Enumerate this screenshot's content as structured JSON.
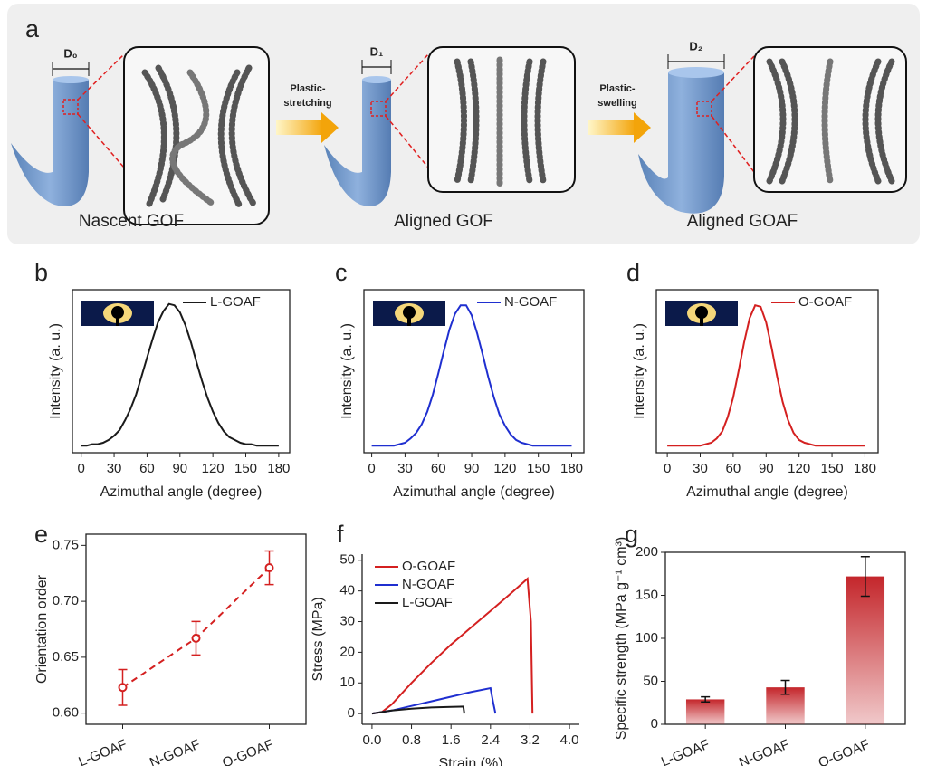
{
  "panel_a": {
    "label": "a",
    "fibers": [
      {
        "label": "D₀"
      },
      {
        "label": "D₁"
      },
      {
        "label": "D₂"
      }
    ],
    "arrows": [
      {
        "lines": [
          "Plastic-",
          "stretching"
        ]
      },
      {
        "lines": [
          "Plastic-",
          "swelling"
        ]
      }
    ],
    "captions": [
      "Nascent GOF",
      "Aligned GOF",
      "Aligned GOAF"
    ]
  },
  "chart_data": [
    {
      "type": "line",
      "label": "b",
      "xlabel": "Azimuthal angle (degree)",
      "ylabel": "Intensity (a. u.)",
      "x": [
        0,
        5,
        10,
        15,
        20,
        25,
        30,
        35,
        40,
        45,
        50,
        55,
        60,
        65,
        70,
        75,
        80,
        85,
        90,
        95,
        100,
        105,
        110,
        115,
        120,
        125,
        130,
        135,
        140,
        145,
        150,
        155,
        160,
        165,
        170,
        175,
        180
      ],
      "series": [
        {
          "name": "L-GOAF",
          "color": "#1a1a1a",
          "values": [
            0,
            0,
            0.01,
            0.01,
            0.02,
            0.04,
            0.07,
            0.11,
            0.18,
            0.26,
            0.36,
            0.49,
            0.62,
            0.75,
            0.87,
            0.95,
            1.0,
            0.99,
            0.94,
            0.85,
            0.73,
            0.59,
            0.46,
            0.34,
            0.24,
            0.16,
            0.1,
            0.06,
            0.04,
            0.02,
            0.01,
            0.01,
            0,
            0,
            0,
            0,
            0
          ]
        }
      ],
      "xlim": [
        -8,
        190
      ],
      "ylim": [
        -0.05,
        1.1
      ],
      "xticks": [
        0,
        30,
        60,
        90,
        120,
        150,
        180
      ],
      "legend": "upper right"
    },
    {
      "type": "line",
      "label": "c",
      "xlabel": "Azimuthal angle (degree)",
      "ylabel": "Intensity (a. u.)",
      "x": [
        0,
        5,
        10,
        15,
        20,
        25,
        30,
        35,
        40,
        45,
        50,
        55,
        60,
        65,
        70,
        75,
        80,
        85,
        90,
        95,
        100,
        105,
        110,
        115,
        120,
        125,
        130,
        135,
        140,
        145,
        150,
        155,
        160,
        165,
        170,
        175,
        180
      ],
      "series": [
        {
          "name": "N-GOAF",
          "color": "#1f2fd0",
          "values": [
            0,
            0,
            0,
            0,
            0,
            0.01,
            0.02,
            0.05,
            0.09,
            0.15,
            0.24,
            0.36,
            0.51,
            0.67,
            0.82,
            0.93,
            0.99,
            0.99,
            0.92,
            0.79,
            0.64,
            0.48,
            0.34,
            0.22,
            0.14,
            0.08,
            0.04,
            0.02,
            0.01,
            0,
            0,
            0,
            0,
            0,
            0,
            0,
            0
          ]
        }
      ],
      "xlim": [
        -7,
        191
      ],
      "ylim": [
        -0.05,
        1.1
      ],
      "xticks": [
        0,
        30,
        60,
        90,
        120,
        150,
        180
      ],
      "legend": "upper right"
    },
    {
      "type": "line",
      "label": "d",
      "xlabel": "Azimuthal angle (degree)",
      "ylabel": "Intensity (a. u.)",
      "x": [
        0,
        5,
        10,
        15,
        20,
        25,
        30,
        35,
        40,
        45,
        50,
        55,
        60,
        65,
        70,
        75,
        80,
        85,
        90,
        95,
        100,
        105,
        110,
        115,
        120,
        125,
        130,
        135,
        140,
        145,
        150,
        155,
        160,
        165,
        170,
        175,
        180
      ],
      "series": [
        {
          "name": "O-GOAF",
          "color": "#d42020",
          "values": [
            0,
            0,
            0,
            0,
            0,
            0,
            0,
            0.01,
            0.02,
            0.05,
            0.1,
            0.2,
            0.34,
            0.53,
            0.73,
            0.9,
            0.99,
            0.98,
            0.87,
            0.69,
            0.49,
            0.31,
            0.18,
            0.09,
            0.04,
            0.02,
            0.01,
            0,
            0,
            0,
            0,
            0,
            0,
            0,
            0,
            0,
            0
          ]
        }
      ],
      "xlim": [
        -10,
        192
      ],
      "ylim": [
        -0.05,
        1.1
      ],
      "xticks": [
        0,
        30,
        60,
        90,
        120,
        150,
        180
      ],
      "legend": "upper right"
    },
    {
      "type": "line",
      "label": "e",
      "ylabel": "Orientation order",
      "categories": [
        "L-GOAF",
        "N-GOAF",
        "O-GOAF"
      ],
      "series": [
        {
          "color": "#d42020",
          "values": [
            0.623,
            0.667,
            0.73
          ],
          "errors": [
            0.016,
            0.015,
            0.015
          ]
        }
      ],
      "ylim": [
        0.59,
        0.76
      ],
      "yticks": [
        {
          "value": 0.6,
          "label": "0.60"
        },
        0.65,
        {
          "value": 0.7,
          "label": "0.70"
        },
        0.75
      ],
      "line_style": "dashed",
      "markers": true
    },
    {
      "type": "line",
      "label": "f",
      "xlabel": "Strain (%)",
      "ylabel": "Stress (MPa)",
      "series": [
        {
          "name": "O-GOAF",
          "color": "#d42020",
          "x": [
            0,
            0.2,
            0.4,
            0.8,
            1.2,
            1.6,
            2.0,
            2.4,
            2.8,
            3.15,
            3.22,
            3.25
          ],
          "values": [
            0,
            0.5,
            3,
            10,
            16.5,
            22.5,
            28,
            33.5,
            39,
            44,
            30,
            0
          ]
        },
        {
          "name": "N-GOAF",
          "color": "#1f2fd0",
          "x": [
            0,
            0.4,
            0.8,
            1.2,
            1.6,
            2.0,
            2.4,
            2.45,
            2.5
          ],
          "values": [
            0,
            1,
            2.5,
            4,
            5.5,
            7,
            8.3,
            4,
            0
          ]
        },
        {
          "name": "L-GOAF",
          "color": "#1a1a1a",
          "x": [
            0,
            0.4,
            0.8,
            1.2,
            1.6,
            1.85,
            1.87
          ],
          "values": [
            0,
            1,
            1.6,
            2,
            2.2,
            2.3,
            0
          ]
        }
      ],
      "xlim": [
        -0.2,
        4.2
      ],
      "ylim": [
        -3.5,
        52
      ],
      "xticks": [
        {
          "value": 0,
          "label": "0.0"
        },
        0.8,
        1.6,
        2.4,
        3.2,
        {
          "value": 4,
          "label": "4.0"
        }
      ],
      "yticks": [
        0,
        10,
        20,
        30,
        40,
        50
      ],
      "legend": "upper left"
    },
    {
      "type": "bar",
      "label": "g",
      "ylabel": "Specific strength (MPa g⁻¹ cm³)",
      "categories": [
        "L-GOAF",
        "N-GOAF",
        "O-GOAF"
      ],
      "values": [
        29,
        43,
        172
      ],
      "errors": [
        3,
        8,
        23
      ],
      "color": "#c4262b",
      "ylim": [
        0,
        200
      ],
      "yticks": [
        0,
        50,
        100,
        150,
        200
      ]
    }
  ]
}
